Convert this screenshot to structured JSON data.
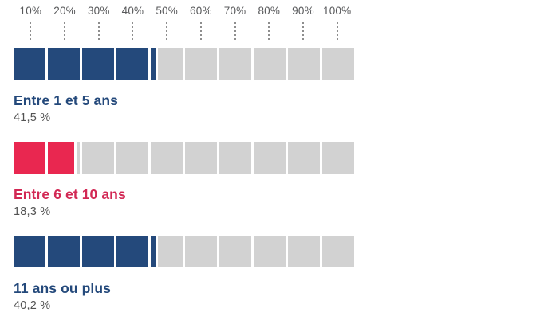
{
  "colors": {
    "navy": "#24497b",
    "navy_label": "#24497b",
    "red": "#e92750",
    "red_label": "#d22854",
    "track": "#d2d2d2",
    "axis_text": "#58595b",
    "value_text": "#535353",
    "tick": "#8e8e8e",
    "background": "#ffffff"
  },
  "chart_data": {
    "type": "bar",
    "orientation": "horizontal",
    "title": "",
    "xlabel": "",
    "ylabel": "",
    "unit": "%",
    "xlim": [
      0,
      100
    ],
    "grid": "dotted-ticks-top",
    "legend": "none",
    "segments_per_bar": 10,
    "axis_tick_labels": [
      "10%",
      "20%",
      "30%",
      "40%",
      "50%",
      "60%",
      "70%",
      "80%",
      "90%",
      "100%"
    ],
    "categories": [
      "Entre 1 et 5 ans",
      "Entre 6 et 10 ans",
      "11 ans ou plus"
    ],
    "values": [
      41.5,
      18.3,
      40.2
    ],
    "rows": [
      {
        "label": "Entre 1 et 5 ans",
        "value": 41.5,
        "value_label": "41,5 %",
        "color_key": "navy",
        "label_color_key": "navy_label"
      },
      {
        "label": "Entre 6 et 10 ans",
        "value": 18.3,
        "value_label": "18,3 %",
        "color_key": "red",
        "label_color_key": "red_label"
      },
      {
        "label": "11 ans ou plus",
        "value": 40.2,
        "value_label": "40,2 %",
        "color_key": "navy",
        "label_color_key": "navy_label"
      }
    ]
  }
}
